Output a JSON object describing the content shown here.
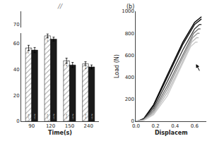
{
  "chart_data": [
    {
      "type": "bar",
      "xlabel": "Time(s)",
      "categories": [
        "90",
        "120",
        "150",
        "240"
      ],
      "series": [
        {
          "color": "#d8d8d8",
          "values": [
            56.7,
            66.0,
            46.8,
            44.5
          ],
          "errors": [
            2.0,
            1.5,
            2.0,
            1.5
          ],
          "data_labels": true,
          "value_labels": [
            "56.7",
            "66.0",
            "46.8",
            "44.5"
          ],
          "annotations": [
            "+3.1%",
            "+3.5%",
            "+2.5%",
            "+2.0%"
          ]
        },
        {
          "color": "#1a1a1a",
          "values": [
            55.0,
            63.5,
            43.5,
            42.0
          ],
          "errors": [
            2.0,
            1.5,
            2.0,
            1.5
          ],
          "annotations": [
            "+3.1%",
            "+3.5%",
            "+2.5%",
            "+2.0%"
          ]
        }
      ],
      "ylim": [
        0,
        68
      ],
      "yticks": [
        0,
        20,
        40,
        60
      ],
      "y2lim": [
        68,
        77
      ],
      "y2ticks": [
        70
      ],
      "annotations": [
        "//"
      ],
      "grid": false
    },
    {
      "type": "line",
      "title": "(b)",
      "xlabel": "Displacem",
      "ylabel": "Load (N)",
      "xlim": [
        0.0,
        0.72
      ],
      "xticks": [
        {
          "value": 0.0,
          "label": "0.0"
        },
        0.2,
        0.4,
        0.6
      ],
      "ylim": [
        0,
        1000
      ],
      "yticks": [
        0,
        200,
        400,
        600,
        800,
        1000
      ],
      "series": [
        {
          "color": "#000000",
          "x": [
            0,
            0.03,
            0.08,
            0.18,
            0.32,
            0.48,
            0.6,
            0.65,
            0.67
          ],
          "values": [
            0,
            5,
            25,
            150,
            420,
            720,
            900,
            940,
            950
          ]
        },
        {
          "color": "#111111",
          "x": [
            0,
            0.03,
            0.08,
            0.18,
            0.32,
            0.48,
            0.6,
            0.65,
            0.67
          ],
          "values": [
            0,
            4,
            22,
            140,
            400,
            700,
            880,
            920,
            930
          ]
        },
        {
          "color": "#444444",
          "x": [
            0,
            0.03,
            0.08,
            0.18,
            0.32,
            0.48,
            0.6,
            0.65,
            0.67
          ],
          "values": [
            0,
            3,
            18,
            120,
            360,
            650,
            840,
            880,
            880
          ]
        },
        {
          "color": "#777777",
          "x": [
            0,
            0.03,
            0.08,
            0.18,
            0.32,
            0.48,
            0.59,
            0.64,
            0.66
          ],
          "values": [
            0,
            3,
            15,
            100,
            320,
            600,
            800,
            840,
            840
          ]
        },
        {
          "color": "#999999",
          "x": [
            0,
            0.03,
            0.08,
            0.18,
            0.32,
            0.47,
            0.58,
            0.63,
            0.65
          ],
          "values": [
            0,
            2,
            12,
            85,
            290,
            560,
            760,
            800,
            800
          ]
        },
        {
          "color": "#bbbbbb",
          "x": [
            0,
            0.03,
            0.08,
            0.18,
            0.32,
            0.46,
            0.57,
            0.62,
            0.64
          ],
          "values": [
            0,
            2,
            10,
            70,
            260,
            510,
            720,
            760,
            760
          ]
        },
        {
          "color": "#cccccc",
          "x": [
            0,
            0.03,
            0.08,
            0.18,
            0.32,
            0.45,
            0.56,
            0.61,
            0.63
          ],
          "values": [
            0,
            1,
            8,
            60,
            230,
            470,
            680,
            720,
            720
          ]
        }
      ],
      "arrows": [
        {
          "x": 0.615,
          "y": 520,
          "from": [
            0.655,
            450
          ]
        }
      ],
      "grid": false
    }
  ]
}
